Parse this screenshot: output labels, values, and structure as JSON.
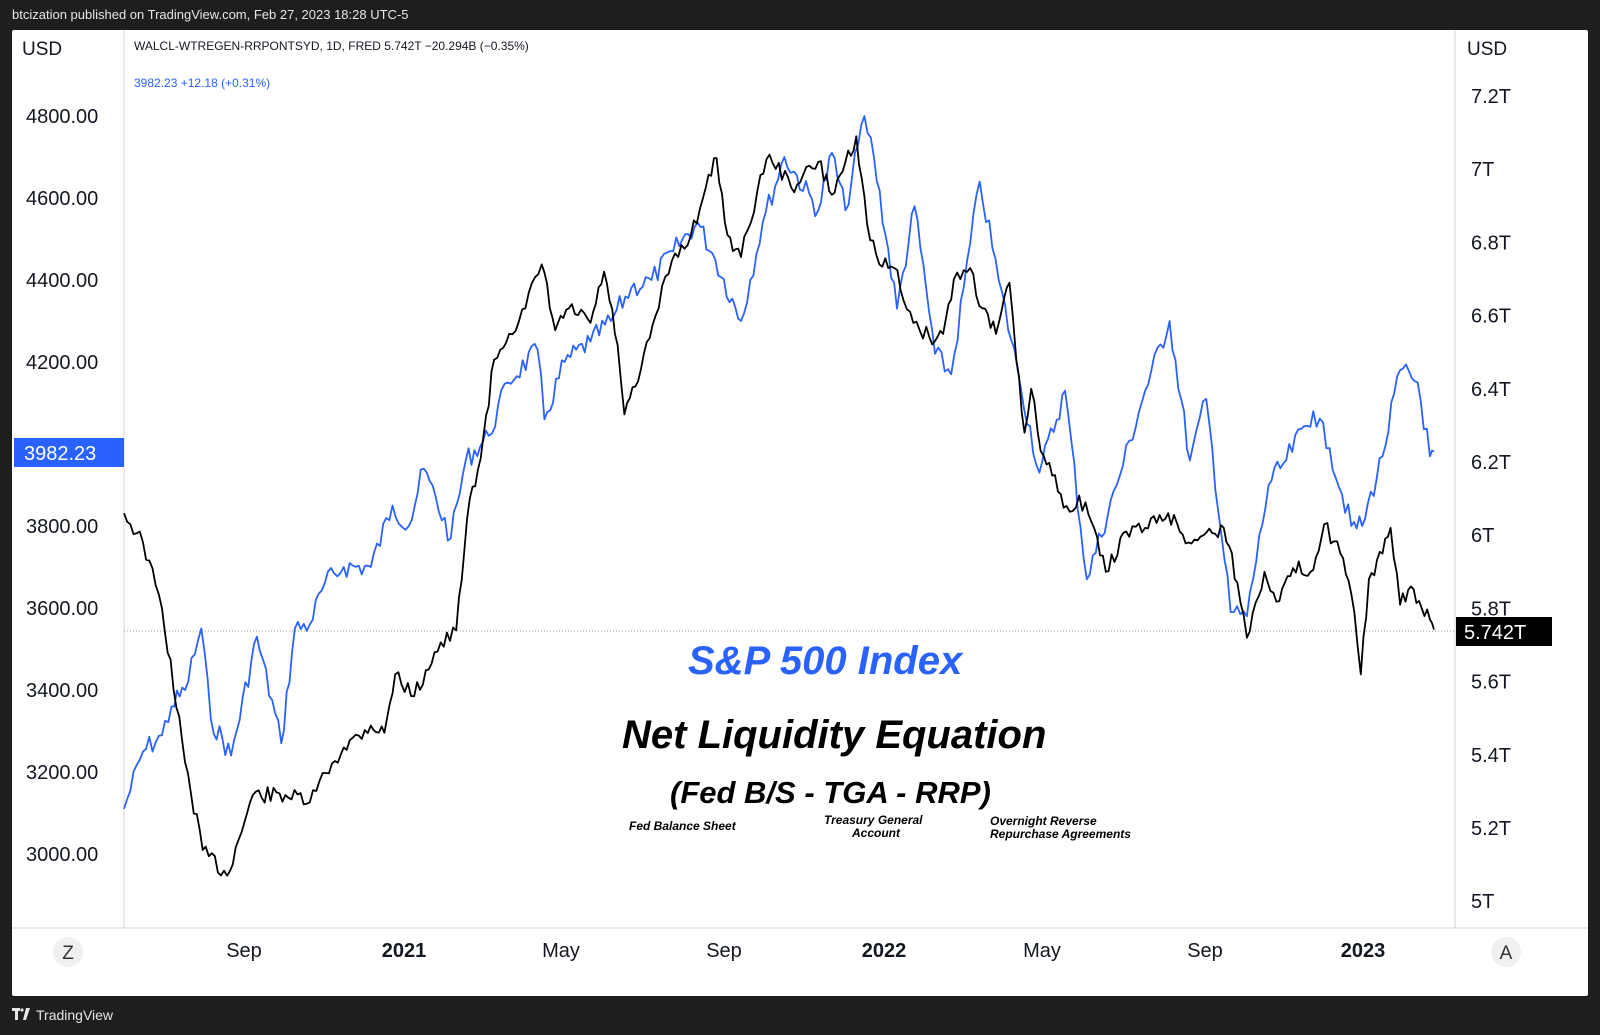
{
  "header": {
    "published": "btcization published on TradingView.com, Feb 27, 2023 18:28 UTC-5"
  },
  "footer": {
    "logo": "TradingView",
    "logo_icon": "tradingview-logo-icon"
  },
  "legend": {
    "line1": "WALCL-WTREGEN-RRPONTSYD, 1D, FRED  5.742T  −20.294B (−0.35%)",
    "line2": "3982.23  +12.18 (+0.31%)"
  },
  "axes": {
    "left_unit": "USD",
    "right_unit": "USD",
    "left_ticks": [
      "4800.00",
      "4600.00",
      "4400.00",
      "4200.00",
      "3800.00",
      "3600.00",
      "3400.00",
      "3200.00",
      "3000.00"
    ],
    "right_ticks": [
      "7.2T",
      "7T",
      "6.8T",
      "6.6T",
      "6.4T",
      "6.2T",
      "6T",
      "5.8T",
      "5.6T",
      "5.4T",
      "5.2T",
      "5T"
    ],
    "x_ticks": [
      {
        "label": "Sep",
        "bold": false
      },
      {
        "label": "2021",
        "bold": true
      },
      {
        "label": "May",
        "bold": false
      },
      {
        "label": "Sep",
        "bold": false
      },
      {
        "label": "2022",
        "bold": true
      },
      {
        "label": "May",
        "bold": false
      },
      {
        "label": "Sep",
        "bold": false
      },
      {
        "label": "2023",
        "bold": true
      }
    ],
    "left_badge": "3982.23",
    "right_badge": "5.742T",
    "left_corner": "Z",
    "right_corner": "A"
  },
  "annotations": {
    "sp500": "S&P 500 Index",
    "title": "Net Liquidity Equation",
    "formula": "(Fed B/S - TGA - RRP)",
    "fed": "Fed Balance Sheet",
    "tga_line1": "Treasury General",
    "tga_line2": "Account",
    "rrp_line1": "Overnight Reverse",
    "rrp_line2": "Repurchase Agreements"
  },
  "colors": {
    "spx": "#2962ff",
    "liquidity": "#000000",
    "badge_left": "#2962ff",
    "badge_right": "#000000"
  },
  "chart_data": {
    "type": "line",
    "x_range": [
      "2020-07",
      "2023-02"
    ],
    "left_ylim": [
      2820,
      4930
    ],
    "right_ylim": [
      4.9,
      7.3
    ],
    "series": [
      {
        "axis": "left",
        "color": "#2962ff",
        "points": [
          [
            "2020-07-06",
            3110
          ],
          [
            "2020-07-20",
            3250
          ],
          [
            "2020-08-03",
            3290
          ],
          [
            "2020-08-10",
            3360
          ],
          [
            "2020-08-20",
            3400
          ],
          [
            "2020-09-01",
            3550
          ],
          [
            "2020-09-08",
            3330
          ],
          [
            "2020-09-23",
            3240
          ],
          [
            "2020-10-12",
            3530
          ],
          [
            "2020-10-30",
            3270
          ],
          [
            "2020-11-09",
            3550
          ],
          [
            "2020-11-20",
            3560
          ],
          [
            "2020-12-01",
            3660
          ],
          [
            "2020-12-15",
            3700
          ],
          [
            "2021-01-04",
            3700
          ],
          [
            "2021-01-20",
            3850
          ],
          [
            "2021-02-01",
            3800
          ],
          [
            "2021-02-12",
            3940
          ],
          [
            "2021-03-04",
            3770
          ],
          [
            "2021-03-15",
            3960
          ],
          [
            "2021-04-01",
            4020
          ],
          [
            "2021-04-15",
            4150
          ],
          [
            "2021-05-07",
            4230
          ],
          [
            "2021-05-12",
            4060
          ],
          [
            "2021-05-27",
            4200
          ],
          [
            "2021-06-15",
            4250
          ],
          [
            "2021-06-30",
            4300
          ],
          [
            "2021-07-15",
            4380
          ],
          [
            "2021-07-30",
            4400
          ],
          [
            "2021-08-15",
            4470
          ],
          [
            "2021-09-02",
            4540
          ],
          [
            "2021-09-15",
            4450
          ],
          [
            "2021-10-04",
            4300
          ],
          [
            "2021-10-20",
            4540
          ],
          [
            "2021-11-05",
            4700
          ],
          [
            "2021-11-30",
            4570
          ],
          [
            "2021-12-10",
            4710
          ],
          [
            "2021-12-20",
            4570
          ],
          [
            "2022-01-03",
            4800
          ],
          [
            "2022-01-10",
            4700
          ],
          [
            "2022-01-27",
            4330
          ],
          [
            "2022-02-09",
            4580
          ],
          [
            "2022-02-24",
            4220
          ],
          [
            "2022-03-08",
            4170
          ],
          [
            "2022-03-29",
            4640
          ],
          [
            "2022-04-12",
            4400
          ],
          [
            "2022-04-26",
            4180
          ],
          [
            "2022-05-12",
            3930
          ],
          [
            "2022-05-31",
            4130
          ],
          [
            "2022-06-16",
            3670
          ],
          [
            "2022-07-08",
            3900
          ],
          [
            "2022-07-29",
            4130
          ],
          [
            "2022-08-16",
            4300
          ],
          [
            "2022-08-31",
            3960
          ],
          [
            "2022-09-12",
            4110
          ],
          [
            "2022-09-30",
            3590
          ],
          [
            "2022-10-12",
            3580
          ],
          [
            "2022-10-28",
            3900
          ],
          [
            "2022-11-10",
            3960
          ],
          [
            "2022-11-30",
            4080
          ],
          [
            "2022-12-12",
            3990
          ],
          [
            "2022-12-28",
            3800
          ],
          [
            "2023-01-05",
            3800
          ],
          [
            "2023-01-20",
            3970
          ],
          [
            "2023-02-02",
            4180
          ],
          [
            "2023-02-15",
            4150
          ],
          [
            "2023-02-24",
            3970
          ],
          [
            "2023-02-27",
            3982
          ]
        ]
      },
      {
        "axis": "right",
        "color": "#000000",
        "points": [
          [
            "2020-07-06",
            6.06
          ],
          [
            "2020-07-20",
            5.98
          ],
          [
            "2020-08-03",
            5.8
          ],
          [
            "2020-08-20",
            5.38
          ],
          [
            "2020-09-02",
            5.14
          ],
          [
            "2020-09-20",
            5.07
          ],
          [
            "2020-10-09",
            5.29
          ],
          [
            "2020-11-02",
            5.29
          ],
          [
            "2020-11-20",
            5.27
          ],
          [
            "2020-12-02",
            5.35
          ],
          [
            "2020-12-15",
            5.42
          ],
          [
            "2021-01-04",
            5.48
          ],
          [
            "2021-01-14",
            5.46
          ],
          [
            "2021-01-22",
            5.62
          ],
          [
            "2021-02-05",
            5.56
          ],
          [
            "2021-02-20",
            5.68
          ],
          [
            "2021-03-08",
            5.74
          ],
          [
            "2021-03-18",
            6.1
          ],
          [
            "2021-03-26",
            6.21
          ],
          [
            "2021-04-05",
            6.48
          ],
          [
            "2021-04-16",
            6.55
          ],
          [
            "2021-04-28",
            6.62
          ],
          [
            "2021-05-10",
            6.74
          ],
          [
            "2021-05-20",
            6.56
          ],
          [
            "2021-05-30",
            6.62
          ],
          [
            "2021-06-15",
            6.58
          ],
          [
            "2021-06-25",
            6.72
          ],
          [
            "2021-07-05",
            6.52
          ],
          [
            "2021-07-10",
            6.33
          ],
          [
            "2021-07-20",
            6.42
          ],
          [
            "2021-08-02",
            6.6
          ],
          [
            "2021-08-14",
            6.75
          ],
          [
            "2021-08-28",
            6.82
          ],
          [
            "2021-09-08",
            6.95
          ],
          [
            "2021-09-16",
            7.03
          ],
          [
            "2021-09-24",
            6.82
          ],
          [
            "2021-10-04",
            6.76
          ],
          [
            "2021-10-16",
            6.94
          ],
          [
            "2021-10-25",
            7.04
          ],
          [
            "2021-11-10",
            6.95
          ],
          [
            "2021-11-30",
            7.02
          ],
          [
            "2021-12-10",
            6.93
          ],
          [
            "2021-12-20",
            7.02
          ],
          [
            "2021-12-28",
            7.09
          ],
          [
            "2022-01-05",
            6.85
          ],
          [
            "2022-01-14",
            6.74
          ],
          [
            "2022-01-25",
            6.73
          ],
          [
            "2022-02-08",
            6.58
          ],
          [
            "2022-02-20",
            6.54
          ],
          [
            "2022-03-02",
            6.55
          ],
          [
            "2022-03-10",
            6.7
          ],
          [
            "2022-03-22",
            6.73
          ],
          [
            "2022-03-31",
            6.62
          ],
          [
            "2022-04-10",
            6.55
          ],
          [
            "2022-04-20",
            6.69
          ],
          [
            "2022-04-25",
            6.48
          ],
          [
            "2022-05-01",
            6.28
          ],
          [
            "2022-05-06",
            6.4
          ],
          [
            "2022-05-13",
            6.23
          ],
          [
            "2022-06-01",
            6.08
          ],
          [
            "2022-06-15",
            6.09
          ],
          [
            "2022-06-30",
            5.9
          ],
          [
            "2022-07-15",
            6.01
          ],
          [
            "2022-07-29",
            6.02
          ],
          [
            "2022-08-15",
            6.06
          ],
          [
            "2022-08-30",
            5.98
          ],
          [
            "2022-09-10",
            6.0
          ],
          [
            "2022-09-25",
            6.02
          ],
          [
            "2022-10-05",
            5.87
          ],
          [
            "2022-10-12",
            5.72
          ],
          [
            "2022-10-25",
            5.9
          ],
          [
            "2022-11-05",
            5.82
          ],
          [
            "2022-11-15",
            5.91
          ],
          [
            "2022-11-28",
            5.9
          ],
          [
            "2022-12-08",
            6.03
          ],
          [
            "2022-12-20",
            5.95
          ],
          [
            "2022-12-28",
            5.84
          ],
          [
            "2023-01-04",
            5.62
          ],
          [
            "2023-01-10",
            5.88
          ],
          [
            "2023-01-20",
            5.95
          ],
          [
            "2023-01-26",
            6.02
          ],
          [
            "2023-02-02",
            5.81
          ],
          [
            "2023-02-10",
            5.86
          ],
          [
            "2023-02-18",
            5.8
          ],
          [
            "2023-02-24",
            5.77
          ],
          [
            "2023-02-27",
            5.742
          ]
        ]
      }
    ]
  }
}
